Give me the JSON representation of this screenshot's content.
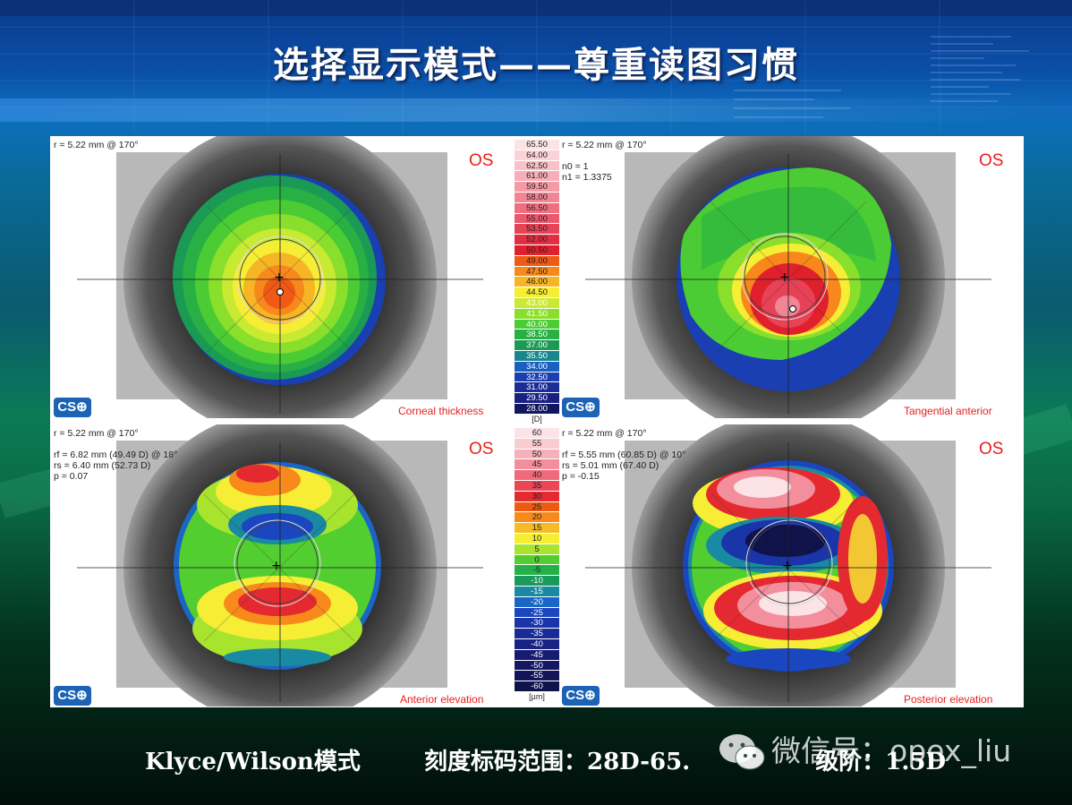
{
  "title": "选择显示模式——尊重读图习惯",
  "maps": [
    {
      "id": "corneal-thickness",
      "eye": "OS",
      "label": "Corneal thickness",
      "info": [
        "r = 5.22 mm @ 170°"
      ]
    },
    {
      "id": "tangential-anterior",
      "eye": "OS",
      "label": "Tangential anterior",
      "info": [
        "r = 5.22 mm @ 170°",
        "",
        "n0 = 1",
        "n1 = 1.3375"
      ]
    },
    {
      "id": "anterior-elevation",
      "eye": "OS",
      "label": "Anterior elevation",
      "info": [
        "r = 5.22 mm @ 170°",
        "",
        "rf = 6.82 mm (49.49 D) @ 18°",
        "rs = 6.40 mm (52.73 D)",
        "p = 0.07"
      ]
    },
    {
      "id": "posterior-elevation",
      "eye": "OS",
      "label": "Posterior elevation",
      "info": [
        "r = 5.22 mm @ 170°",
        "",
        "rf = 5.55 mm (60.85 D) @ 10°",
        "rs = 5.01 mm (67.40 D)",
        "p = -0.15"
      ]
    }
  ],
  "logo_text": "CS",
  "curvature_scale": {
    "unit": "[D]",
    "values": [
      "65.50",
      "64.00",
      "62.50",
      "61.00",
      "59.50",
      "58.00",
      "56.50",
      "55.00",
      "53.50",
      "52.00",
      "50.50",
      "49.00",
      "47.50",
      "46.00",
      "44.50",
      "43.00",
      "41.50",
      "40.00",
      "38.50",
      "37.00",
      "35.50",
      "34.00",
      "32.50",
      "31.00",
      "29.50",
      "28.00"
    ],
    "colors": [
      "#fbe3e6",
      "#fad3d8",
      "#f8c1c8",
      "#f6afb8",
      "#f49ba6",
      "#f28594",
      "#ef6f80",
      "#ec586c",
      "#e84256",
      "#e42d40",
      "#e0202c",
      "#f05a14",
      "#f8881c",
      "#f6b524",
      "#f6ee34",
      "#c8ea32",
      "#8ade2c",
      "#4ccc34",
      "#28b044",
      "#1a9a54",
      "#19868e",
      "#1a60c0",
      "#1a3fb2",
      "#1a2c98",
      "#182080",
      "#111660"
    ]
  },
  "elevation_scale": {
    "unit": "[µm]",
    "values": [
      "60",
      "55",
      "50",
      "45",
      "40",
      "35",
      "30",
      "25",
      "20",
      "15",
      "10",
      "5",
      "0",
      "-5",
      "-10",
      "-15",
      "-20",
      "-25",
      "-30",
      "-35",
      "-40",
      "-45",
      "-50",
      "-55",
      "-60"
    ],
    "colors": [
      "#fbe3e6",
      "#f9ccd2",
      "#f6b0ba",
      "#f38e9c",
      "#ef6a7c",
      "#ea4656",
      "#e42a30",
      "#ee5a14",
      "#f88a1c",
      "#f6bc26",
      "#f6ee34",
      "#a8e42e",
      "#52ce30",
      "#26b04a",
      "#1a9a5a",
      "#1a8aa2",
      "#1a66c8",
      "#1a46c0",
      "#1a34aa",
      "#1a2a96",
      "#182284",
      "#161c72",
      "#141864",
      "#121558",
      "#10124a"
    ]
  },
  "caption": {
    "mode": "Klyce/Wilson模式",
    "range_prefix": "刻度标码范围：28D-65.",
    "range_suffix": "级阶：1.5D"
  },
  "watermark": {
    "text": "微信号：opex_liu"
  }
}
